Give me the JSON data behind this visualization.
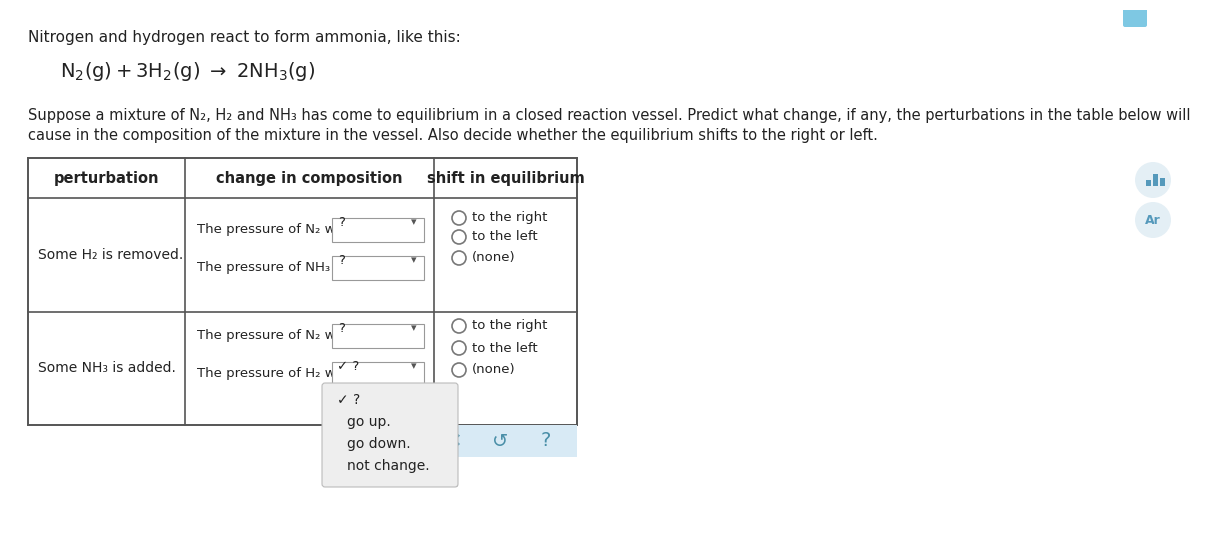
{
  "title_line1": "Nitrogen and hydrogen react to form ammonia, like this:",
  "col_headers": [
    "perturbation",
    "change in composition",
    "shift in equilibrium"
  ],
  "row1_perturbation": "Some H₂ is removed.",
  "row1_change1": "The pressure of N₂ will",
  "row1_change2": "The pressure of NH₃ will",
  "row2_perturbation": "Some NH₃ is added.",
  "row2_change1": "The pressure of N₂ will",
  "row2_change2": "The pressure of H₂ will",
  "shift_options": [
    "to the right",
    "to the left",
    "(none)"
  ],
  "dropdown_items": [
    "✓ ?",
    "go up.",
    "go down.",
    "not change."
  ],
  "bg_color": "#ffffff",
  "table_border": "#555555",
  "text_color": "#222222",
  "radio_stroke": "#777777",
  "dropdown_border": "#aaaaaa",
  "toolbar_bg": "#d8eaf5",
  "icon_color": "#4a8fa8",
  "popup_bg": "#eeeeee",
  "popup_border": "#bbbbbb"
}
